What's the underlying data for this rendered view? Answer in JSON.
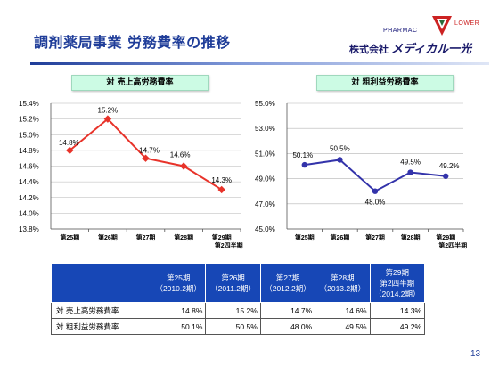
{
  "header": {
    "title": "調剤薬局事業 労務費率の推移",
    "brand_pharmac": "PHARMAC",
    "brand_flower": "LOWER",
    "company_prefix": "株式会社",
    "company_name": "メディカル一光"
  },
  "chart_data": [
    {
      "type": "line",
      "title": "対 売上高労務費率",
      "categories": [
        "第25期",
        "第26期",
        "第27期",
        "第28期",
        "第29期\n第2四半期"
      ],
      "series": [
        {
          "values": [
            14.8,
            15.2,
            14.7,
            14.6,
            14.3
          ],
          "labels": [
            "14.8%",
            "15.2%",
            "14.7%",
            "14.6%",
            "14.3%"
          ]
        }
      ],
      "ylim": [
        13.8,
        15.4
      ],
      "yticks": [
        "13.8%",
        "14.0%",
        "14.2%",
        "14.4%",
        "14.6%",
        "14.8%",
        "15.0%",
        "15.2%",
        "15.4%"
      ],
      "color": "#e8332a",
      "grid": true
    },
    {
      "type": "line",
      "title": "対 粗利益労務費率",
      "categories": [
        "第25期",
        "第26期",
        "第27期",
        "第28期",
        "第29期\n第2四半期"
      ],
      "series": [
        {
          "values": [
            50.1,
            50.5,
            48.0,
            49.5,
            49.2
          ],
          "labels": [
            "50.1%",
            "50.5%",
            "48.0%",
            "49.5%",
            "49.2%"
          ]
        }
      ],
      "ylim": [
        45.0,
        55.0
      ],
      "yticks": [
        "45.0%",
        "47.0%",
        "49.0%",
        "51.0%",
        "53.0%",
        "55.0%"
      ],
      "color": "#3333aa",
      "grid": true
    }
  ],
  "table": {
    "headers": [
      {
        "line1": "第25期",
        "line2": "（2010.2期）"
      },
      {
        "line1": "第26期",
        "line2": "（2011.2期）"
      },
      {
        "line1": "第27期",
        "line2": "（2012.2期）"
      },
      {
        "line1": "第28期",
        "line2": "（2013.2期）"
      },
      {
        "line1": "第29期",
        "line2": "第2四半期",
        "line3": "（2014.2期）"
      }
    ],
    "rows": [
      {
        "label": "対 売上高労務費率",
        "cells": [
          "14.8%",
          "15.2%",
          "14.7%",
          "14.6%",
          "14.3%"
        ]
      },
      {
        "label": "対 粗利益労務費率",
        "cells": [
          "50.1%",
          "50.5%",
          "48.0%",
          "49.5%",
          "49.2%"
        ]
      }
    ]
  },
  "page_number": "13"
}
